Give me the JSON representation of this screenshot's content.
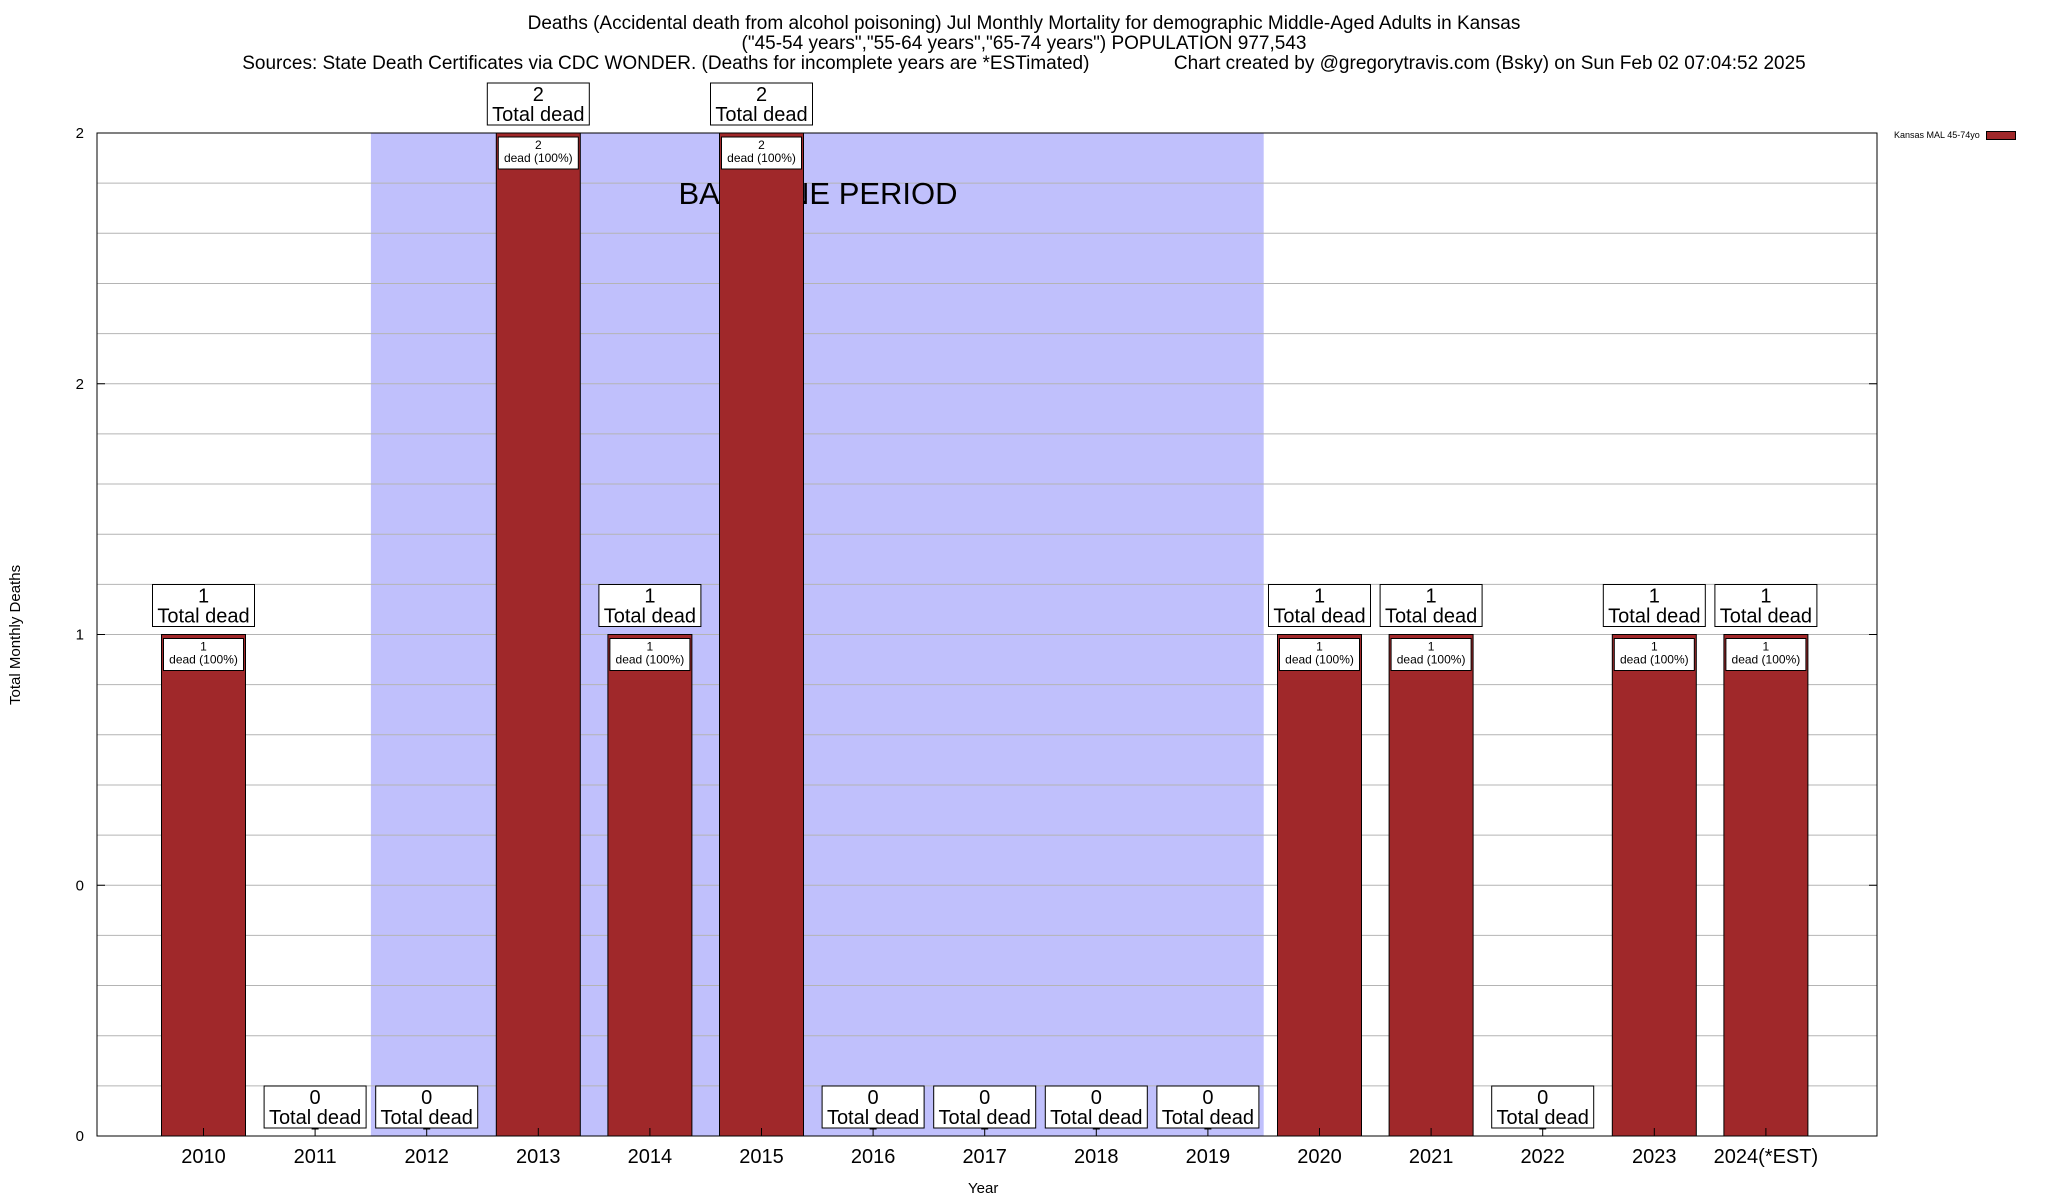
{
  "chart_data": {
    "type": "bar",
    "title_lines": [
      "Deaths (Accidental death from alcohol poisoning) Jul Monthly Mortality for demographic Middle-Aged Adults in Kansas",
      "(\"45-54 years\",\"55-64 years\",\"65-74 years\") POPULATION 977,543",
      "Sources: State Death Certificates via CDC WONDER. (Deaths for incomplete years are *ESTimated)                Chart created by @gregorytravis.com (Bsky) on Sun Feb 02 07:04:52 2025"
    ],
    "xlabel": "Year",
    "ylabel": "Total Monthly Deaths",
    "categories": [
      "2010",
      "2011",
      "2012",
      "2013",
      "2014",
      "2015",
      "2016",
      "2017",
      "2018",
      "2019",
      "2020",
      "2021",
      "2022",
      "2023",
      "2024(*EST)"
    ],
    "series": [
      {
        "name": "Kansas MAL 45-74yo",
        "values": [
          1,
          0,
          0,
          2,
          1,
          2,
          0,
          0,
          0,
          0,
          1,
          1,
          0,
          1,
          1
        ]
      }
    ],
    "total_labels": [
      "1\nTotal dead",
      "0\nTotal dead",
      "0\nTotal dead",
      "2\nTotal dead",
      "1\nTotal dead",
      "2\nTotal dead",
      "0\nTotal dead",
      "0\nTotal dead",
      "0\nTotal dead",
      "0\nTotal dead",
      "1\nTotal dead",
      "1\nTotal dead",
      "0\nTotal dead",
      "1\nTotal dead",
      "1\nTotal dead"
    ],
    "bar_labels": [
      "1\ndead (100%)",
      "",
      "",
      "2\ndead (100%)",
      "1\ndead (100%)",
      "2\ndead (100%)",
      "",
      "",
      "",
      "",
      "1\ndead (100%)",
      "1\ndead (100%)",
      "",
      "1\ndead (100%)",
      "1\ndead (100%)"
    ],
    "ytick_labels": [
      "0",
      "0",
      "1",
      "2",
      "2"
    ],
    "ylim": [
      0,
      2
    ],
    "baseline_period": {
      "label": "BASELINE PERIOD",
      "from": "2012",
      "to": "2019"
    },
    "grid": true,
    "legend_position": "top-right",
    "colors": {
      "bar": "#a0282a",
      "baseline_shade": "#c0c0fc"
    }
  }
}
